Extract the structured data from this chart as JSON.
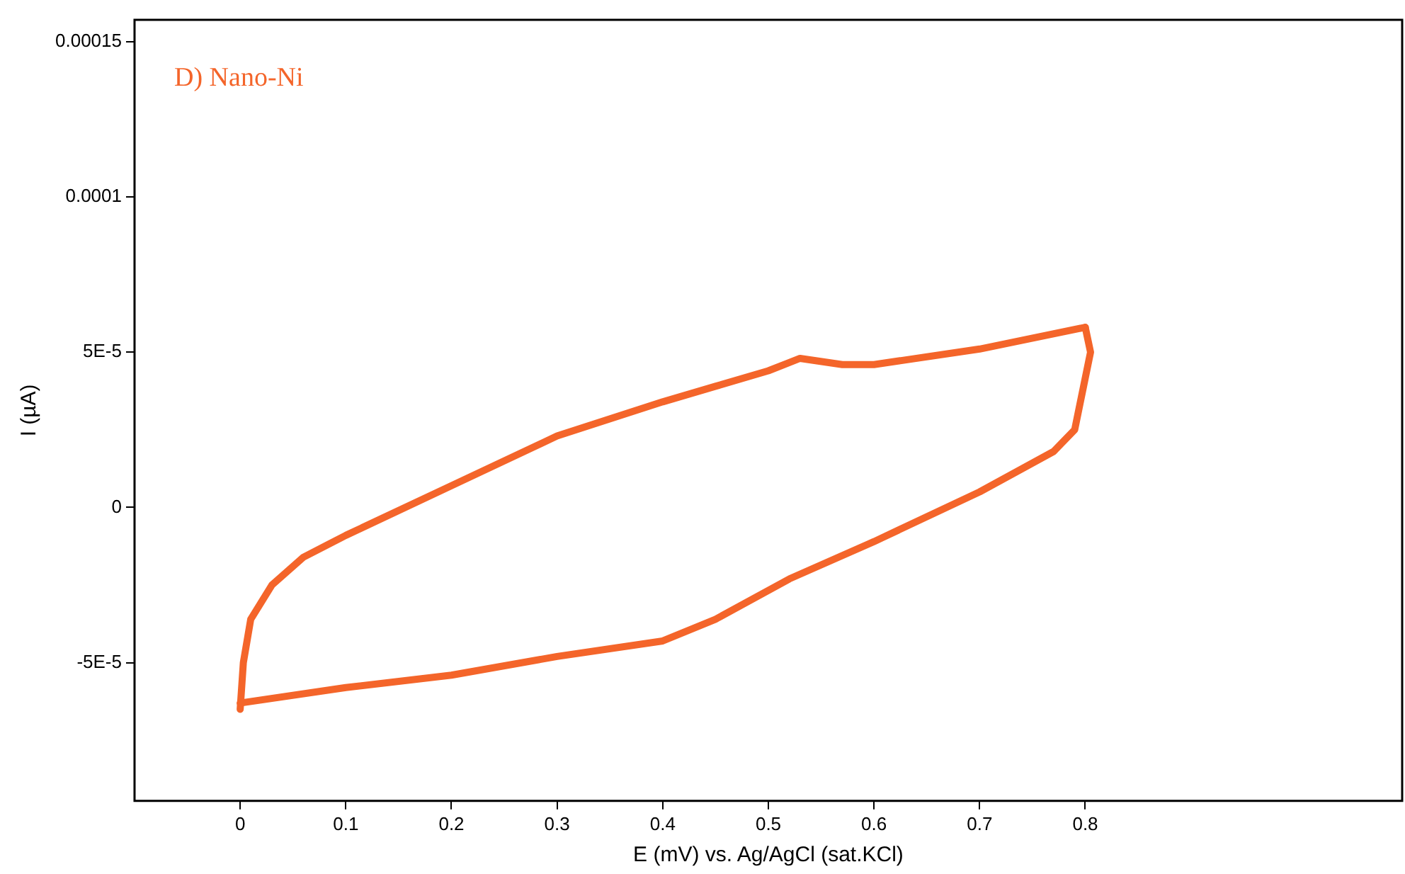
{
  "chart_data": {
    "type": "line",
    "xlabel": "E (mV) vs. Ag/AgCl (sat.KCl)",
    "ylabel": "I (µA)",
    "annotations": [
      "D) Nano-Ni"
    ],
    "xlim": [
      -0.1,
      1.1
    ],
    "xticks": [
      0,
      0.1,
      0.2,
      0.3,
      0.4,
      0.5,
      0.6,
      0.7,
      0.8
    ],
    "ylim": [
      -9.45e-05,
      0.000157
    ],
    "yticks": [
      {
        "value": -5e-05,
        "label": "-5E-5"
      },
      {
        "value": 0,
        "label": "0"
      },
      {
        "value": 5e-05,
        "label": "5E-5"
      },
      {
        "value": 0.0001,
        "label": "0.0001"
      },
      {
        "value": 0.00015,
        "label": "0.00015"
      }
    ],
    "grid": false,
    "legend": false,
    "marker": "none",
    "line_style": "solid",
    "series": [
      {
        "color": "#f4652a",
        "x": [
          0,
          0.003,
          0.01,
          0.03,
          0.06,
          0.1,
          0.2,
          0.3,
          0.4,
          0.45,
          0.5,
          0.53,
          0.57,
          0.6,
          0.7,
          0.8
        ],
        "values": [
          -6.5e-05,
          -5e-05,
          -3.6e-05,
          -2.5e-05,
          -1.6e-05,
          -9e-06,
          7e-06,
          2.3e-05,
          3.4e-05,
          3.9e-05,
          4.4e-05,
          4.8e-05,
          4.6e-05,
          4.6e-05,
          5.1e-05,
          5.8e-05
        ]
      },
      {
        "color": "#f4652a",
        "x": [
          0.8,
          0.805,
          0.79,
          0.77,
          0.7,
          0.6,
          0.52,
          0.45,
          0.4,
          0.3,
          0.2,
          0.1,
          0
        ],
        "values": [
          5.8e-05,
          5e-05,
          2.5e-05,
          1.8e-05,
          5e-06,
          -1.1e-05,
          -2.3e-05,
          -3.6e-05,
          -4.3e-05,
          -4.8e-05,
          -5.4e-05,
          -5.8e-05,
          -6.3e-05
        ]
      }
    ]
  }
}
